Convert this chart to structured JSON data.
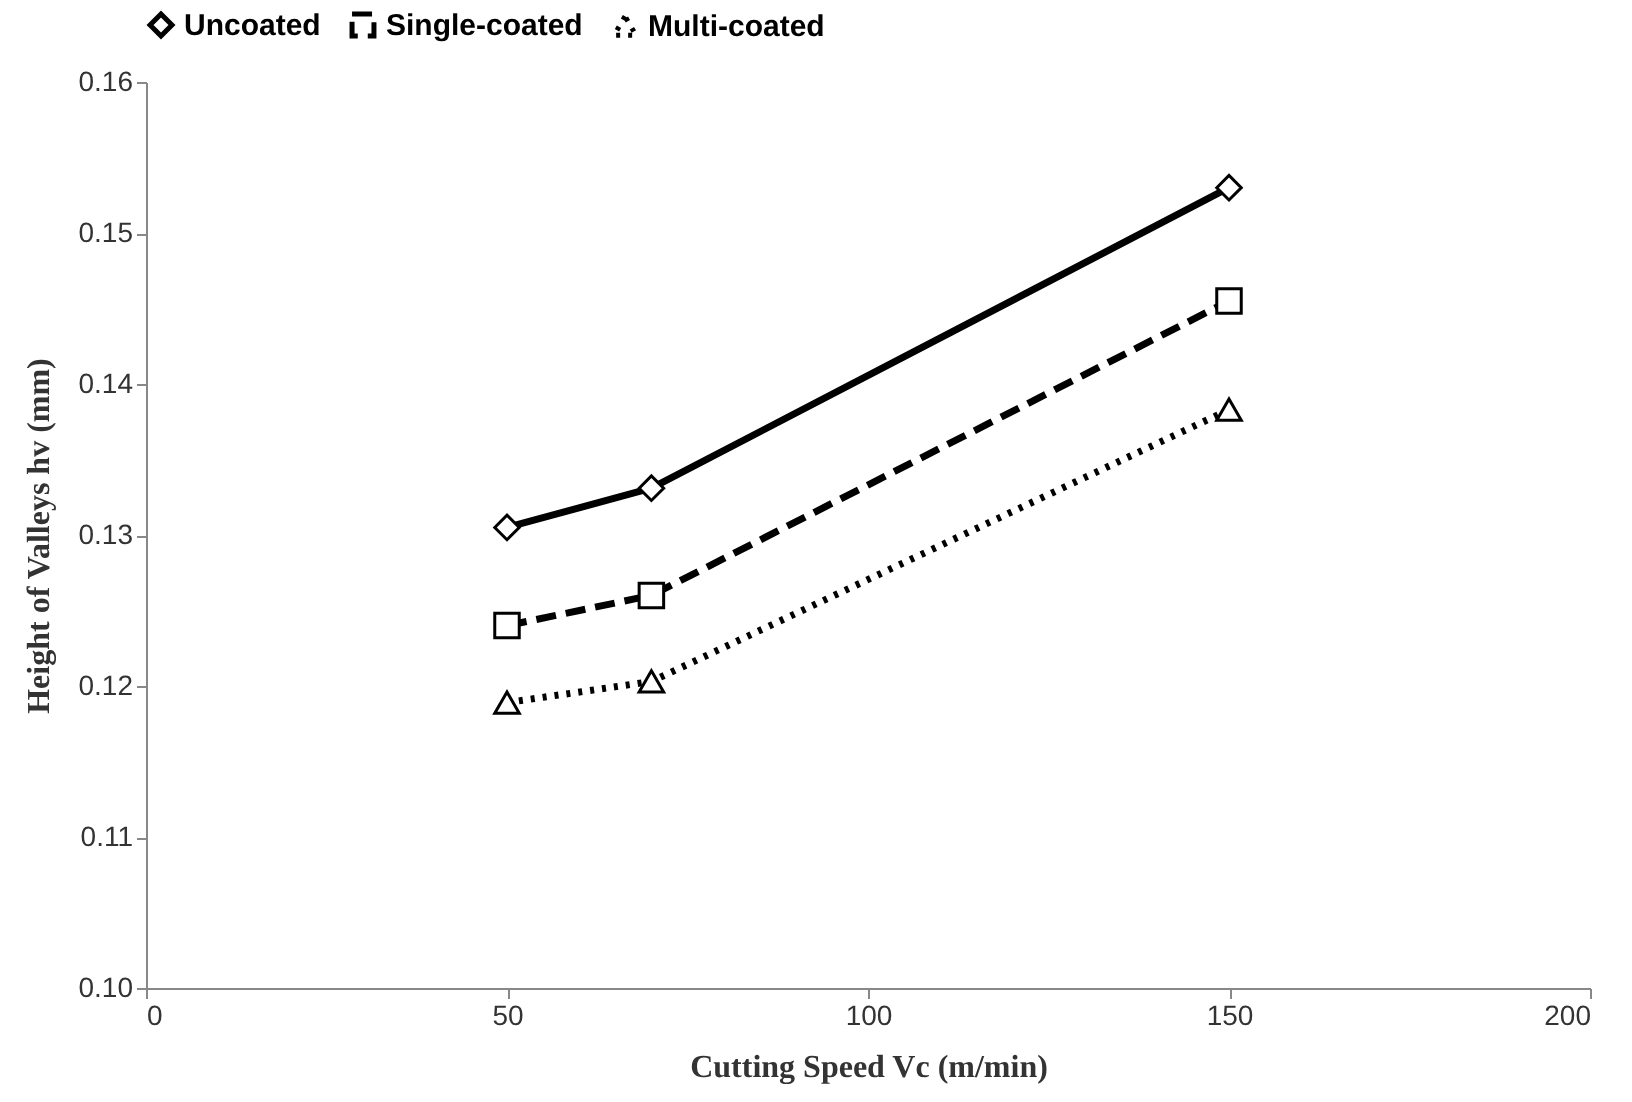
{
  "chart_data": {
    "type": "line",
    "xlabel": "Cutting Speed Vc (m/min)",
    "ylabel": "Height of Valleys hv (mm)",
    "x": [
      50,
      70,
      150
    ],
    "series": [
      {
        "name": "Uncoated",
        "color": "#000000",
        "marker": "diamond",
        "line_style": "solid",
        "values": [
          0.1305,
          0.1331,
          0.153
        ]
      },
      {
        "name": "Single-coated",
        "color": "#000000",
        "marker": "square",
        "line_style": "dashed",
        "values": [
          0.124,
          0.126,
          0.1455
        ]
      },
      {
        "name": "Multi-coated",
        "color": "#000000",
        "marker": "triangle",
        "line_style": "dotted",
        "values": [
          0.1189,
          0.1203,
          0.1383
        ]
      }
    ],
    "xlim": [
      0,
      200
    ],
    "xticks": [
      0,
      50,
      100,
      150,
      200
    ],
    "ylim": [
      0.1,
      0.16
    ],
    "yticks": [
      {
        "value": 0.1,
        "label": "0.10"
      },
      {
        "value": 0.11,
        "label": "0.11"
      },
      {
        "value": 0.12,
        "label": "0.12"
      },
      {
        "value": 0.13,
        "label": "0.13"
      },
      {
        "value": 0.14,
        "label": "0.14"
      },
      {
        "value": 0.15,
        "label": "0.15"
      },
      {
        "value": 0.16,
        "label": "0.16"
      }
    ],
    "grid": false,
    "legend": "top"
  }
}
